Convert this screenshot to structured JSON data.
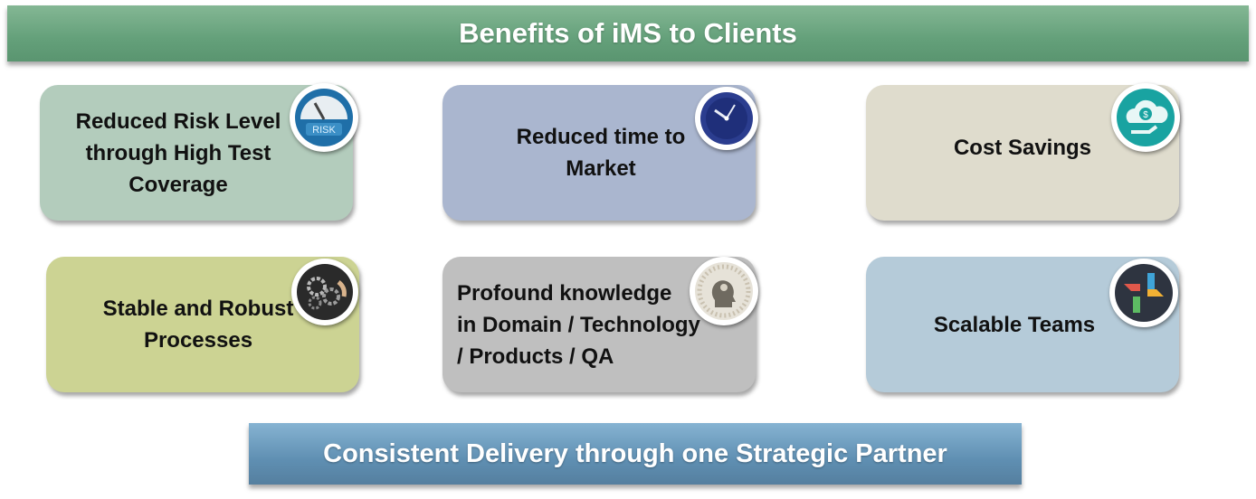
{
  "title": "Benefits of iMS to Clients",
  "benefits": [
    {
      "label": "Reduced Risk Level\nthrough  High Test\nCoverage",
      "icon": "risk-gauge-icon",
      "color": "#b3ccbc"
    },
    {
      "label": "Reduced  time to\nMarket",
      "icon": "clock-icon",
      "color": "#aab6cf"
    },
    {
      "label": "Cost Savings",
      "icon": "money-cloud-icon",
      "color": "#dfdccd"
    },
    {
      "label": "Stable and Robust\nProcesses",
      "icon": "gears-icon",
      "color": "#ccd393"
    },
    {
      "label": "Profound knowledge\nin Domain / Technology\n/ Products / QA",
      "icon": "knowledge-head-icon",
      "color": "#bfbfbf"
    },
    {
      "label": "Scalable Teams",
      "icon": "teamwork-hands-icon",
      "color": "#b5cbd9"
    }
  ],
  "icons": {
    "risk_gauge_text": "RISK"
  },
  "footer": "Consistent Delivery through one Strategic Partner"
}
